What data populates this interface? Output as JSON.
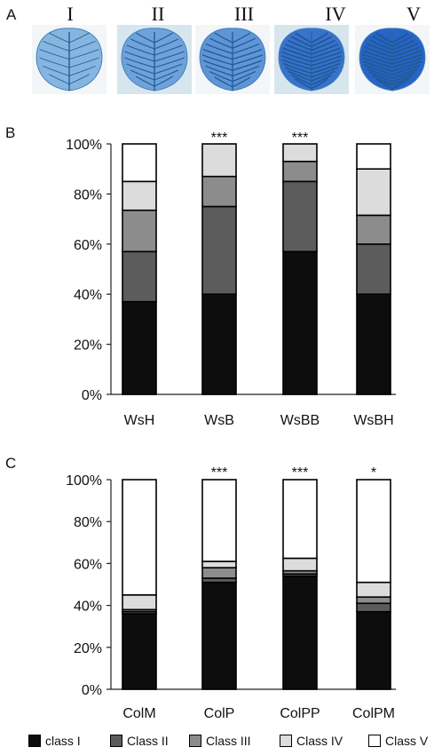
{
  "panel_a": {
    "letter": "A",
    "leaves": [
      {
        "label": "I"
      },
      {
        "label": "II"
      },
      {
        "label": "III"
      },
      {
        "label": "IV"
      },
      {
        "label": "V"
      }
    ]
  },
  "legend": {
    "items": [
      {
        "label": "class I",
        "color": "#0d0d0d"
      },
      {
        "label": "Class II",
        "color": "#5c5c5c"
      },
      {
        "label": "Class III",
        "color": "#8c8c8c"
      },
      {
        "label": "Class IV",
        "color": "#dcdcdc"
      },
      {
        "label": "Class V",
        "color": "#ffffff"
      }
    ]
  },
  "chart_data": [
    {
      "panel": "B",
      "type": "bar",
      "stacked": true,
      "categories": [
        "WsH",
        "WsB",
        "WsBB",
        "WsBH"
      ],
      "annotations": [
        "",
        "***",
        "***",
        ""
      ],
      "ylim": [
        0,
        100
      ],
      "yticks": [
        "0%",
        "20%",
        "40%",
        "60%",
        "80%",
        "100%"
      ],
      "series": [
        {
          "name": "class I",
          "values": [
            37,
            40,
            57,
            40
          ]
        },
        {
          "name": "Class II",
          "values": [
            20,
            35,
            28,
            20
          ]
        },
        {
          "name": "Class III",
          "values": [
            16.5,
            12,
            8,
            11.5
          ]
        },
        {
          "name": "Class IV",
          "values": [
            11.5,
            13,
            7,
            18.5
          ]
        },
        {
          "name": "Class V",
          "values": [
            15,
            0,
            0,
            10
          ]
        }
      ]
    },
    {
      "panel": "C",
      "type": "bar",
      "stacked": true,
      "categories": [
        "ColM",
        "ColP",
        "ColPP",
        "ColPM"
      ],
      "annotations": [
        "",
        "***",
        "***",
        "*"
      ],
      "ylim": [
        0,
        100
      ],
      "yticks": [
        "0%",
        "20%",
        "40%",
        "60%",
        "80%",
        "100%"
      ],
      "series": [
        {
          "name": "class I",
          "values": [
            36,
            51,
            54,
            37
          ]
        },
        {
          "name": "Class II",
          "values": [
            1,
            2,
            1,
            4
          ]
        },
        {
          "name": "Class III",
          "values": [
            1,
            5,
            1.5,
            3
          ]
        },
        {
          "name": "Class IV",
          "values": [
            7,
            3,
            6,
            7
          ]
        },
        {
          "name": "Class V",
          "values": [
            55,
            39,
            37.5,
            49
          ]
        }
      ]
    }
  ]
}
